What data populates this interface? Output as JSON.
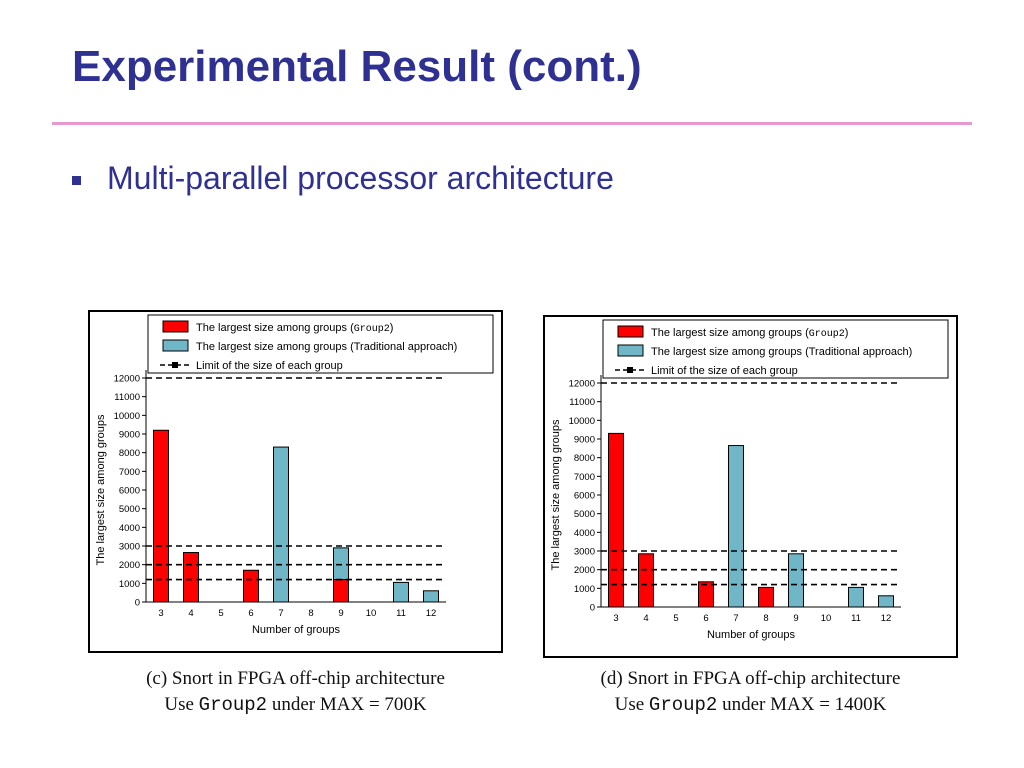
{
  "slide": {
    "title": "Experimental Result (cont.)",
    "bullet": "Multi-parallel processor architecture",
    "colors": {
      "title": "#2e3192",
      "rule": "#e89ad0",
      "group2_bar": "#ff0000",
      "traditional_bar": "#6fb7c7"
    }
  },
  "captions": [
    {
      "line1": "(c) Snort in FPGA off-chip architecture",
      "prefix": "Use ",
      "code": "Group2",
      "suffix": " under MAX = 700K"
    },
    {
      "line1": "(d) Snort in FPGA off-chip architecture",
      "prefix": "Use ",
      "code": "Group2",
      "suffix": " under  MAX = 1400K"
    }
  ],
  "chart_data": [
    {
      "type": "bar",
      "xlabel": "Number of groups",
      "ylabel": "The largest size among groups",
      "ylim": [
        0,
        12000
      ],
      "yticks": [
        0,
        1000,
        2000,
        3000,
        4000,
        5000,
        6000,
        7000,
        8000,
        9000,
        10000,
        11000,
        12000
      ],
      "categories": [
        "3",
        "4",
        "5",
        "6",
        "7",
        "8",
        "9",
        "10",
        "11",
        "12"
      ],
      "legend": [
        {
          "label": "The largest size among groups (",
          "code": "Group2",
          "tail": ")",
          "kind": "bar",
          "color": "#ff0000"
        },
        {
          "label": "The largest size among groups (Traditional approach)",
          "kind": "bar",
          "color": "#6fb7c7"
        },
        {
          "label": "Limit of the size of each group",
          "kind": "line"
        }
      ],
      "series": [
        {
          "name": "The largest size among groups (Group2)",
          "color": "#ff0000",
          "values": [
            9200,
            2650,
            null,
            1700,
            null,
            null,
            1200,
            null,
            null,
            null
          ]
        },
        {
          "name": "The largest size among groups (Traditional approach)",
          "color": "#6fb7c7",
          "values": [
            null,
            null,
            null,
            null,
            8300,
            null,
            2900,
            null,
            1050,
            600
          ]
        }
      ],
      "limits": [
        12000,
        3000,
        2000,
        1200
      ]
    },
    {
      "type": "bar",
      "xlabel": "Number of groups",
      "ylabel": "The largest size among groups",
      "ylim": [
        0,
        12000
      ],
      "yticks": [
        0,
        1000,
        2000,
        3000,
        4000,
        5000,
        6000,
        7000,
        8000,
        9000,
        10000,
        11000,
        12000
      ],
      "categories": [
        "3",
        "4",
        "5",
        "6",
        "7",
        "8",
        "9",
        "10",
        "11",
        "12"
      ],
      "legend": [
        {
          "label": "The largest size among groups (",
          "code": "Group2",
          "tail": ")",
          "kind": "bar",
          "color": "#ff0000"
        },
        {
          "label": "The largest size among groups (Traditional approach)",
          "kind": "bar",
          "color": "#6fb7c7"
        },
        {
          "label": "Limit of the size of each group",
          "kind": "line"
        }
      ],
      "series": [
        {
          "name": "The largest size among groups (Group2)",
          "color": "#ff0000",
          "values": [
            9300,
            2850,
            null,
            1350,
            null,
            1050,
            null,
            null,
            null,
            null
          ]
        },
        {
          "name": "The largest size among groups (Traditional approach)",
          "color": "#6fb7c7",
          "values": [
            null,
            null,
            null,
            null,
            8650,
            null,
            2850,
            null,
            1050,
            600
          ]
        }
      ],
      "limits": [
        12000,
        3000,
        2000,
        1200
      ]
    }
  ]
}
